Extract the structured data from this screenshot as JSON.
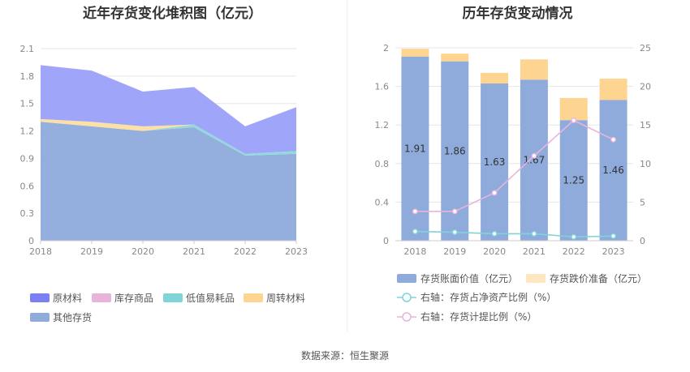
{
  "left_title": "近年存货变化堆积图（亿元）",
  "right_title": "历年存货变动情况",
  "source": "数据来源：恒生聚源",
  "chart_data": [
    {
      "type": "area",
      "title": "近年存货变化堆积图（亿元）",
      "x": [
        "2018",
        "2019",
        "2020",
        "2021",
        "2022",
        "2023"
      ],
      "ylim": [
        0,
        2.1
      ],
      "yticks": [
        "0",
        "0.3",
        "0.6",
        "0.9",
        "1.2",
        "1.5",
        "1.8",
        "2.1"
      ],
      "grid": true,
      "legend_position": "bottom",
      "series": [
        {
          "name": "其他存货",
          "color": "#8eabdc",
          "values": [
            1.3,
            1.25,
            1.2,
            1.24,
            0.93,
            0.95
          ]
        },
        {
          "name": "低值易耗品",
          "color": "#8dd8d8",
          "values": [
            0.0,
            0.0,
            0.0,
            0.03,
            0.02,
            0.03
          ]
        },
        {
          "name": "库存商品",
          "color": "#f0c0e0",
          "values": [
            0.0,
            0.0,
            0.0,
            0.0,
            0.0,
            0.0
          ]
        },
        {
          "name": "周转材料",
          "color": "#fddea0",
          "values": [
            0.03,
            0.05,
            0.05,
            0.0,
            0.0,
            0.0
          ]
        },
        {
          "name": "原材料",
          "color": "#9aa0f8",
          "values": [
            0.59,
            0.56,
            0.38,
            0.41,
            0.3,
            0.48
          ]
        }
      ],
      "legend": [
        {
          "name": "原材料",
          "color": "#7b81f2"
        },
        {
          "name": "库存商品",
          "color": "#e8b4dc"
        },
        {
          "name": "低值易耗品",
          "color": "#7fd4d8"
        },
        {
          "name": "周转材料",
          "color": "#fdd591"
        },
        {
          "name": "其他存货",
          "color": "#8eabdc"
        }
      ]
    },
    {
      "type": "bar",
      "title": "历年存货变动情况",
      "categories": [
        "2018",
        "2019",
        "2020",
        "2021",
        "2022",
        "2023"
      ],
      "ylim": [
        0,
        2
      ],
      "yticks": [
        "0",
        "0.4",
        "0.8",
        "1.2",
        "1.6",
        "2"
      ],
      "y2lim": [
        0,
        25
      ],
      "y2ticks": [
        "0",
        "5",
        "10",
        "15",
        "20",
        "25"
      ],
      "grid": true,
      "legend_position": "bottom",
      "series": [
        {
          "name": "存货账面价值（亿元）",
          "type": "bar",
          "color": "#8eabdc",
          "values": [
            1.91,
            1.86,
            1.63,
            1.67,
            1.25,
            1.46
          ],
          "labels": [
            "1.91",
            "1.86",
            "1.63",
            "1.67",
            "1.25",
            "1.46"
          ]
        },
        {
          "name": "存货跌价准备（亿元）",
          "type": "bar",
          "color": "#fdd591",
          "values": [
            0.08,
            0.08,
            0.11,
            0.21,
            0.23,
            0.22
          ]
        },
        {
          "name": "右轴：存货占净资产比例（%）",
          "type": "line",
          "axis": "right",
          "color": "#7fd4d8",
          "values": [
            1.2,
            1.1,
            0.9,
            0.9,
            0.5,
            0.6
          ]
        },
        {
          "name": "右轴：存货计提比例（%）",
          "type": "line",
          "axis": "right",
          "color": "#e8b4dc",
          "values": [
            3.8,
            3.8,
            6.2,
            11.0,
            15.6,
            13.1
          ]
        }
      ]
    }
  ]
}
